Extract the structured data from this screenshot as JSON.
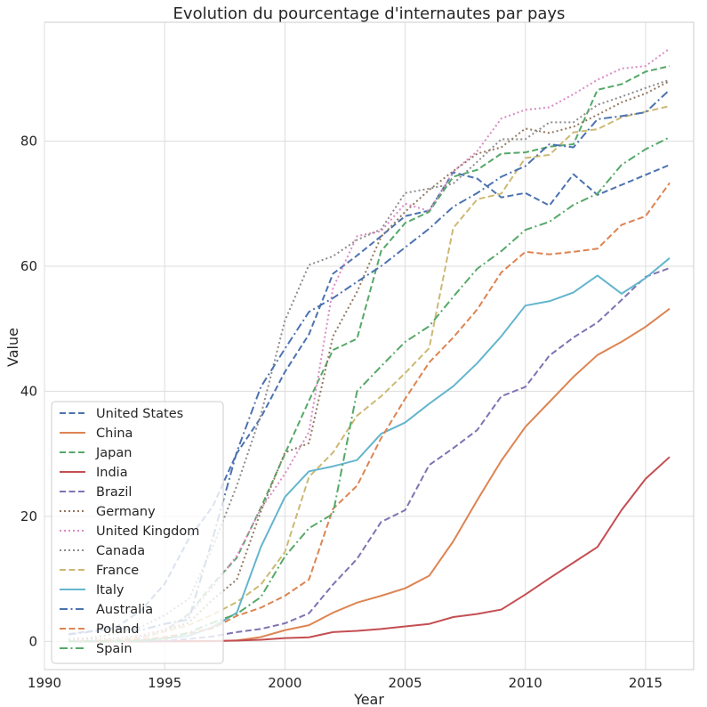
{
  "chart_data": {
    "type": "line",
    "title": "Evolution du pourcentage d'internautes par pays",
    "xlabel": "Year",
    "ylabel": "Value",
    "xlim": [
      1990,
      2017
    ],
    "ylim": [
      -4.5,
      99
    ],
    "xticks": [
      1990,
      1995,
      2000,
      2005,
      2010,
      2015
    ],
    "yticks": [
      0,
      20,
      40,
      60,
      80
    ],
    "grid": true,
    "legend_position": "lower-left",
    "x": [
      1991,
      1992,
      1993,
      1994,
      1995,
      1996,
      1997,
      1998,
      1999,
      2000,
      2001,
      2002,
      2003,
      2004,
      2005,
      2006,
      2007,
      2008,
      2009,
      2010,
      2011,
      2012,
      2013,
      2014,
      2015,
      2016
    ],
    "series": [
      {
        "name": "United States",
        "color": "#4c72b0",
        "style": "dashed",
        "values": [
          1.2,
          1.7,
          2.3,
          4.9,
          9.2,
          16.4,
          21.6,
          30.1,
          35.8,
          43.1,
          49.1,
          58.8,
          61.7,
          64.8,
          68.0,
          68.9,
          75.0,
          74.0,
          71.0,
          71.7,
          69.7,
          74.7,
          71.4,
          73.0,
          74.6,
          76.2
        ]
      },
      {
        "name": "China",
        "color": "#dd8452",
        "style": "solid",
        "values": [
          0,
          0,
          0,
          0,
          0,
          0,
          0.03,
          0.17,
          0.7,
          1.8,
          2.6,
          4.6,
          6.2,
          7.3,
          8.5,
          10.5,
          16.0,
          22.6,
          28.9,
          34.3,
          38.3,
          42.3,
          45.8,
          47.9,
          50.3,
          53.2
        ]
      },
      {
        "name": "Japan",
        "color": "#55a868",
        "style": "dashed",
        "values": [
          0.02,
          0.1,
          0.2,
          0.6,
          1.6,
          4.4,
          9.2,
          13.4,
          21.4,
          30.0,
          38.5,
          46.6,
          48.4,
          62.4,
          66.9,
          68.7,
          74.3,
          75.4,
          78.0,
          78.2,
          79.1,
          79.5,
          88.2,
          89.1,
          91.1,
          92.0
        ]
      },
      {
        "name": "India",
        "color": "#c44e52",
        "style": "solid",
        "values": [
          0,
          0,
          0,
          0,
          0.03,
          0.05,
          0.07,
          0.14,
          0.27,
          0.53,
          0.66,
          1.5,
          1.7,
          2.0,
          2.4,
          2.8,
          3.9,
          4.4,
          5.1,
          7.5,
          10.1,
          12.6,
          15.1,
          21.0,
          26.0,
          29.5
        ]
      },
      {
        "name": "Brazil",
        "color": "#8172b3",
        "style": "dashed",
        "values": [
          0,
          0,
          0,
          0.04,
          0.1,
          0.4,
          0.8,
          1.5,
          2.0,
          2.9,
          4.5,
          9.1,
          13.2,
          19.1,
          21.0,
          28.2,
          30.9,
          33.8,
          39.2,
          40.7,
          45.7,
          48.6,
          51.0,
          54.6,
          58.3,
          59.7
        ]
      },
      {
        "name": "Germany",
        "color": "#937860",
        "style": "dotted",
        "values": [
          0.1,
          0.3,
          0.5,
          0.9,
          1.8,
          3.0,
          6.7,
          9.9,
          20.8,
          30.2,
          31.7,
          48.8,
          55.9,
          64.7,
          68.7,
          72.2,
          75.2,
          78.0,
          79.0,
          82.0,
          81.3,
          82.3,
          84.2,
          86.2,
          87.6,
          89.6
        ]
      },
      {
        "name": "United Kingdom",
        "color": "#da8bc3",
        "style": "dotted",
        "values": [
          0.1,
          0.2,
          0.5,
          1.0,
          1.9,
          4.1,
          8.7,
          13.7,
          21.2,
          26.8,
          33.5,
          56.5,
          64.8,
          65.6,
          70.0,
          68.8,
          75.1,
          78.4,
          83.6,
          85.0,
          85.4,
          87.5,
          89.8,
          91.6,
          92.0,
          94.8
        ]
      },
      {
        "name": "Canada",
        "color": "#8c8c8c",
        "style": "dotted",
        "values": [
          0.4,
          0.6,
          1.3,
          2.3,
          4.2,
          6.8,
          15.1,
          24.9,
          36.2,
          51.3,
          60.2,
          61.6,
          64.2,
          65.9,
          71.7,
          72.4,
          73.2,
          76.7,
          80.3,
          80.3,
          83.0,
          83.0,
          85.8,
          87.1,
          88.5,
          89.8
        ]
      },
      {
        "name": "France",
        "color": "#ccb974",
        "style": "dashed",
        "values": [
          0.05,
          0.1,
          0.3,
          0.6,
          1.6,
          2.6,
          4.3,
          6.3,
          9.1,
          14.3,
          26.3,
          30.2,
          36.1,
          39.2,
          42.9,
          46.9,
          66.1,
          70.7,
          71.6,
          77.3,
          77.8,
          81.4,
          81.9,
          83.8,
          84.7,
          85.6
        ]
      },
      {
        "name": "Italy",
        "color": "#64b5cd",
        "style": "solid",
        "values": [
          0.02,
          0.04,
          0.1,
          0.2,
          0.5,
          0.9,
          2.3,
          4.6,
          15.1,
          23.1,
          27.2,
          28.0,
          29.0,
          33.2,
          35.0,
          38.0,
          40.8,
          44.5,
          48.8,
          53.7,
          54.4,
          55.8,
          58.5,
          55.6,
          58.1,
          61.3
        ]
      },
      {
        "name": "Australia",
        "color": "#4c72b0",
        "style": "dashdot",
        "values": [
          1.1,
          1.6,
          2.1,
          1.8,
          2.8,
          3.5,
          16.5,
          30.3,
          40.7,
          46.8,
          52.7,
          54.9,
          57.5,
          60.0,
          63.0,
          66.0,
          69.5,
          71.7,
          74.3,
          76.0,
          79.5,
          79.0,
          83.5,
          84.0,
          84.6,
          88.2
        ]
      },
      {
        "name": "Poland",
        "color": "#dd8452",
        "style": "dashed",
        "values": [
          0,
          0,
          0.1,
          0.3,
          0.7,
          1.3,
          2.1,
          4.1,
          5.4,
          7.3,
          9.9,
          21.2,
          24.9,
          32.5,
          38.8,
          44.6,
          48.6,
          53.1,
          59.0,
          62.3,
          61.9,
          62.3,
          62.8,
          66.6,
          68.0,
          73.3
        ]
      },
      {
        "name": "Spain",
        "color": "#55a868",
        "style": "dashdot",
        "values": [
          0.02,
          0.04,
          0.1,
          0.1,
          0.4,
          1.4,
          3.0,
          4.4,
          7.1,
          13.6,
          18.1,
          20.4,
          40.0,
          44.0,
          47.9,
          50.4,
          55.1,
          59.6,
          62.4,
          65.8,
          67.1,
          69.8,
          71.6,
          76.2,
          78.7,
          80.6
        ]
      }
    ]
  }
}
